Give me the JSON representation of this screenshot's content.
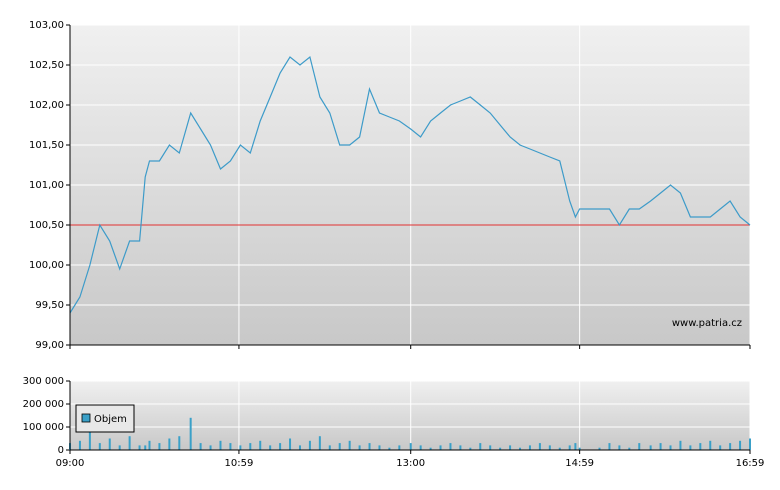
{
  "chart_data": [
    {
      "type": "line",
      "x": [
        540,
        547,
        554,
        561,
        568,
        575,
        582,
        589,
        593,
        596,
        603,
        610,
        617,
        625,
        632,
        639,
        646,
        653,
        660,
        667,
        674,
        681,
        688,
        695,
        702,
        709,
        716,
        723,
        730,
        737,
        744,
        751,
        758,
        765,
        772,
        780,
        787,
        794,
        801,
        808,
        815,
        822,
        829,
        836,
        843,
        850,
        857,
        864,
        871,
        878,
        885,
        892,
        896,
        899,
        913,
        920,
        927,
        934,
        941,
        949,
        956,
        963,
        970,
        977,
        984,
        991,
        998,
        1005,
        1012,
        1019
      ],
      "values": [
        99.4,
        99.6,
        100.0,
        100.5,
        100.3,
        99.95,
        100.3,
        100.3,
        101.1,
        101.3,
        101.3,
        101.5,
        101.4,
        101.9,
        101.7,
        101.5,
        101.2,
        101.3,
        101.5,
        101.4,
        101.8,
        102.1,
        102.4,
        102.6,
        102.5,
        102.6,
        102.1,
        101.9,
        101.5,
        101.5,
        101.6,
        102.2,
        101.9,
        101.85,
        101.8,
        101.7,
        101.6,
        101.8,
        101.9,
        102.0,
        102.05,
        102.1,
        102.0,
        101.9,
        101.75,
        101.6,
        101.5,
        101.45,
        101.4,
        101.35,
        101.3,
        100.8,
        100.6,
        100.7,
        100.7,
        100.7,
        100.5,
        100.7,
        100.7,
        100.8,
        100.9,
        101.0,
        100.9,
        100.6,
        100.6,
        100.6,
        100.7,
        100.8,
        100.6,
        100.5
      ],
      "color": "#3d9bc9",
      "xlim": [
        540,
        1019
      ],
      "ylim": [
        99,
        103
      ],
      "yticks": [
        {
          "value": 99,
          "label": "99,00"
        },
        {
          "value": 99.5,
          "label": "99,50"
        },
        {
          "value": 100,
          "label": "100,00"
        },
        {
          "value": 100.5,
          "label": "100,50"
        },
        {
          "value": 101,
          "label": "101,00"
        },
        {
          "value": 101.5,
          "label": "101,50"
        },
        {
          "value": 102,
          "label": "102,00"
        },
        {
          "value": 102.5,
          "label": "102,50"
        },
        {
          "value": 103,
          "label": "103,00"
        }
      ],
      "reference_line": 100.5,
      "reference_color": "#e03030",
      "grid": true,
      "watermark": "www.patria.cz"
    },
    {
      "type": "bar",
      "x": [
        540,
        547,
        554,
        561,
        568,
        575,
        582,
        589,
        593,
        596,
        603,
        610,
        617,
        625,
        632,
        639,
        646,
        653,
        660,
        667,
        674,
        681,
        688,
        695,
        702,
        709,
        716,
        723,
        730,
        737,
        744,
        751,
        758,
        765,
        772,
        780,
        787,
        794,
        801,
        808,
        815,
        822,
        829,
        836,
        843,
        850,
        857,
        864,
        871,
        878,
        885,
        892,
        896,
        899,
        913,
        920,
        927,
        934,
        941,
        949,
        956,
        963,
        970,
        977,
        984,
        991,
        998,
        1005,
        1012,
        1019
      ],
      "series": [
        {
          "name": "Objem",
          "color": "#3aa0c8",
          "values": [
            30000,
            40000,
            100000,
            30000,
            50000,
            20000,
            60000,
            20000,
            20000,
            40000,
            30000,
            50000,
            60000,
            140000,
            30000,
            20000,
            40000,
            30000,
            20000,
            30000,
            40000,
            20000,
            30000,
            50000,
            20000,
            40000,
            60000,
            20000,
            30000,
            40000,
            20000,
            30000,
            20000,
            10000,
            20000,
            30000,
            20000,
            10000,
            20000,
            30000,
            20000,
            10000,
            30000,
            20000,
            10000,
            20000,
            10000,
            20000,
            30000,
            20000,
            10000,
            20000,
            30000,
            10000,
            10000,
            30000,
            20000,
            10000,
            30000,
            20000,
            30000,
            20000,
            40000,
            20000,
            30000,
            40000,
            20000,
            30000,
            40000,
            50000
          ]
        }
      ],
      "xlim": [
        540,
        1019
      ],
      "xticks": [
        {
          "value": 540,
          "label": "09:00"
        },
        {
          "value": 659,
          "label": "10:59"
        },
        {
          "value": 780,
          "label": "13:00"
        },
        {
          "value": 899,
          "label": "14:59"
        },
        {
          "value": 1019,
          "label": "16:59"
        }
      ],
      "ylim": [
        0,
        300000
      ],
      "yticks": [
        0,
        {
          "value": 100000,
          "label": "100 000"
        },
        {
          "value": 200000,
          "label": "200 000"
        },
        {
          "value": 300000,
          "label": "300 000"
        }
      ],
      "grid": true,
      "legend": "upper left"
    }
  ]
}
